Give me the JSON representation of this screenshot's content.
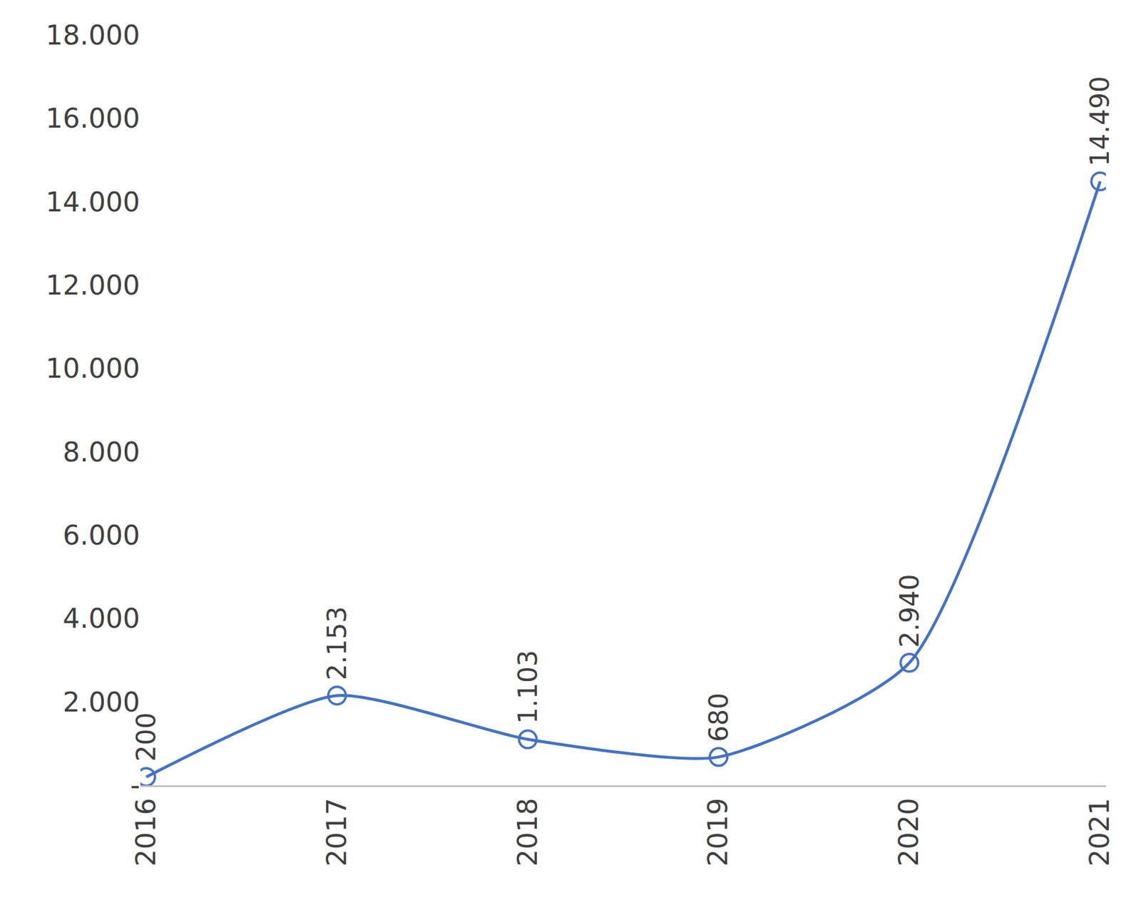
{
  "chart_data": {
    "type": "line",
    "categories": [
      "2016",
      "2017",
      "2018",
      "2019",
      "2020",
      "2021"
    ],
    "values": [
      200,
      2153,
      1103,
      680,
      2940,
      14490
    ],
    "value_labels": [
      "200",
      "2.153",
      "1.103",
      "680",
      "2.940",
      "14.490"
    ],
    "color": "#4472c4",
    "marker": "circle-open",
    "line_style": "solid",
    "data_labels": true,
    "grid": false,
    "ylim": [
      0,
      18000
    ],
    "yticks": [
      {
        "value": 0,
        "label": "-"
      },
      {
        "value": 2000,
        "label": "2.000"
      },
      {
        "value": 4000,
        "label": "4.000"
      },
      {
        "value": 6000,
        "label": "6.000"
      },
      {
        "value": 8000,
        "label": "8.000"
      },
      {
        "value": 10000,
        "label": "10.000"
      },
      {
        "value": 12000,
        "label": "12.000"
      },
      {
        "value": 14000,
        "label": "14.000"
      },
      {
        "value": 16000,
        "label": "16.000"
      },
      {
        "value": 18000,
        "label": "18.000"
      }
    ]
  }
}
